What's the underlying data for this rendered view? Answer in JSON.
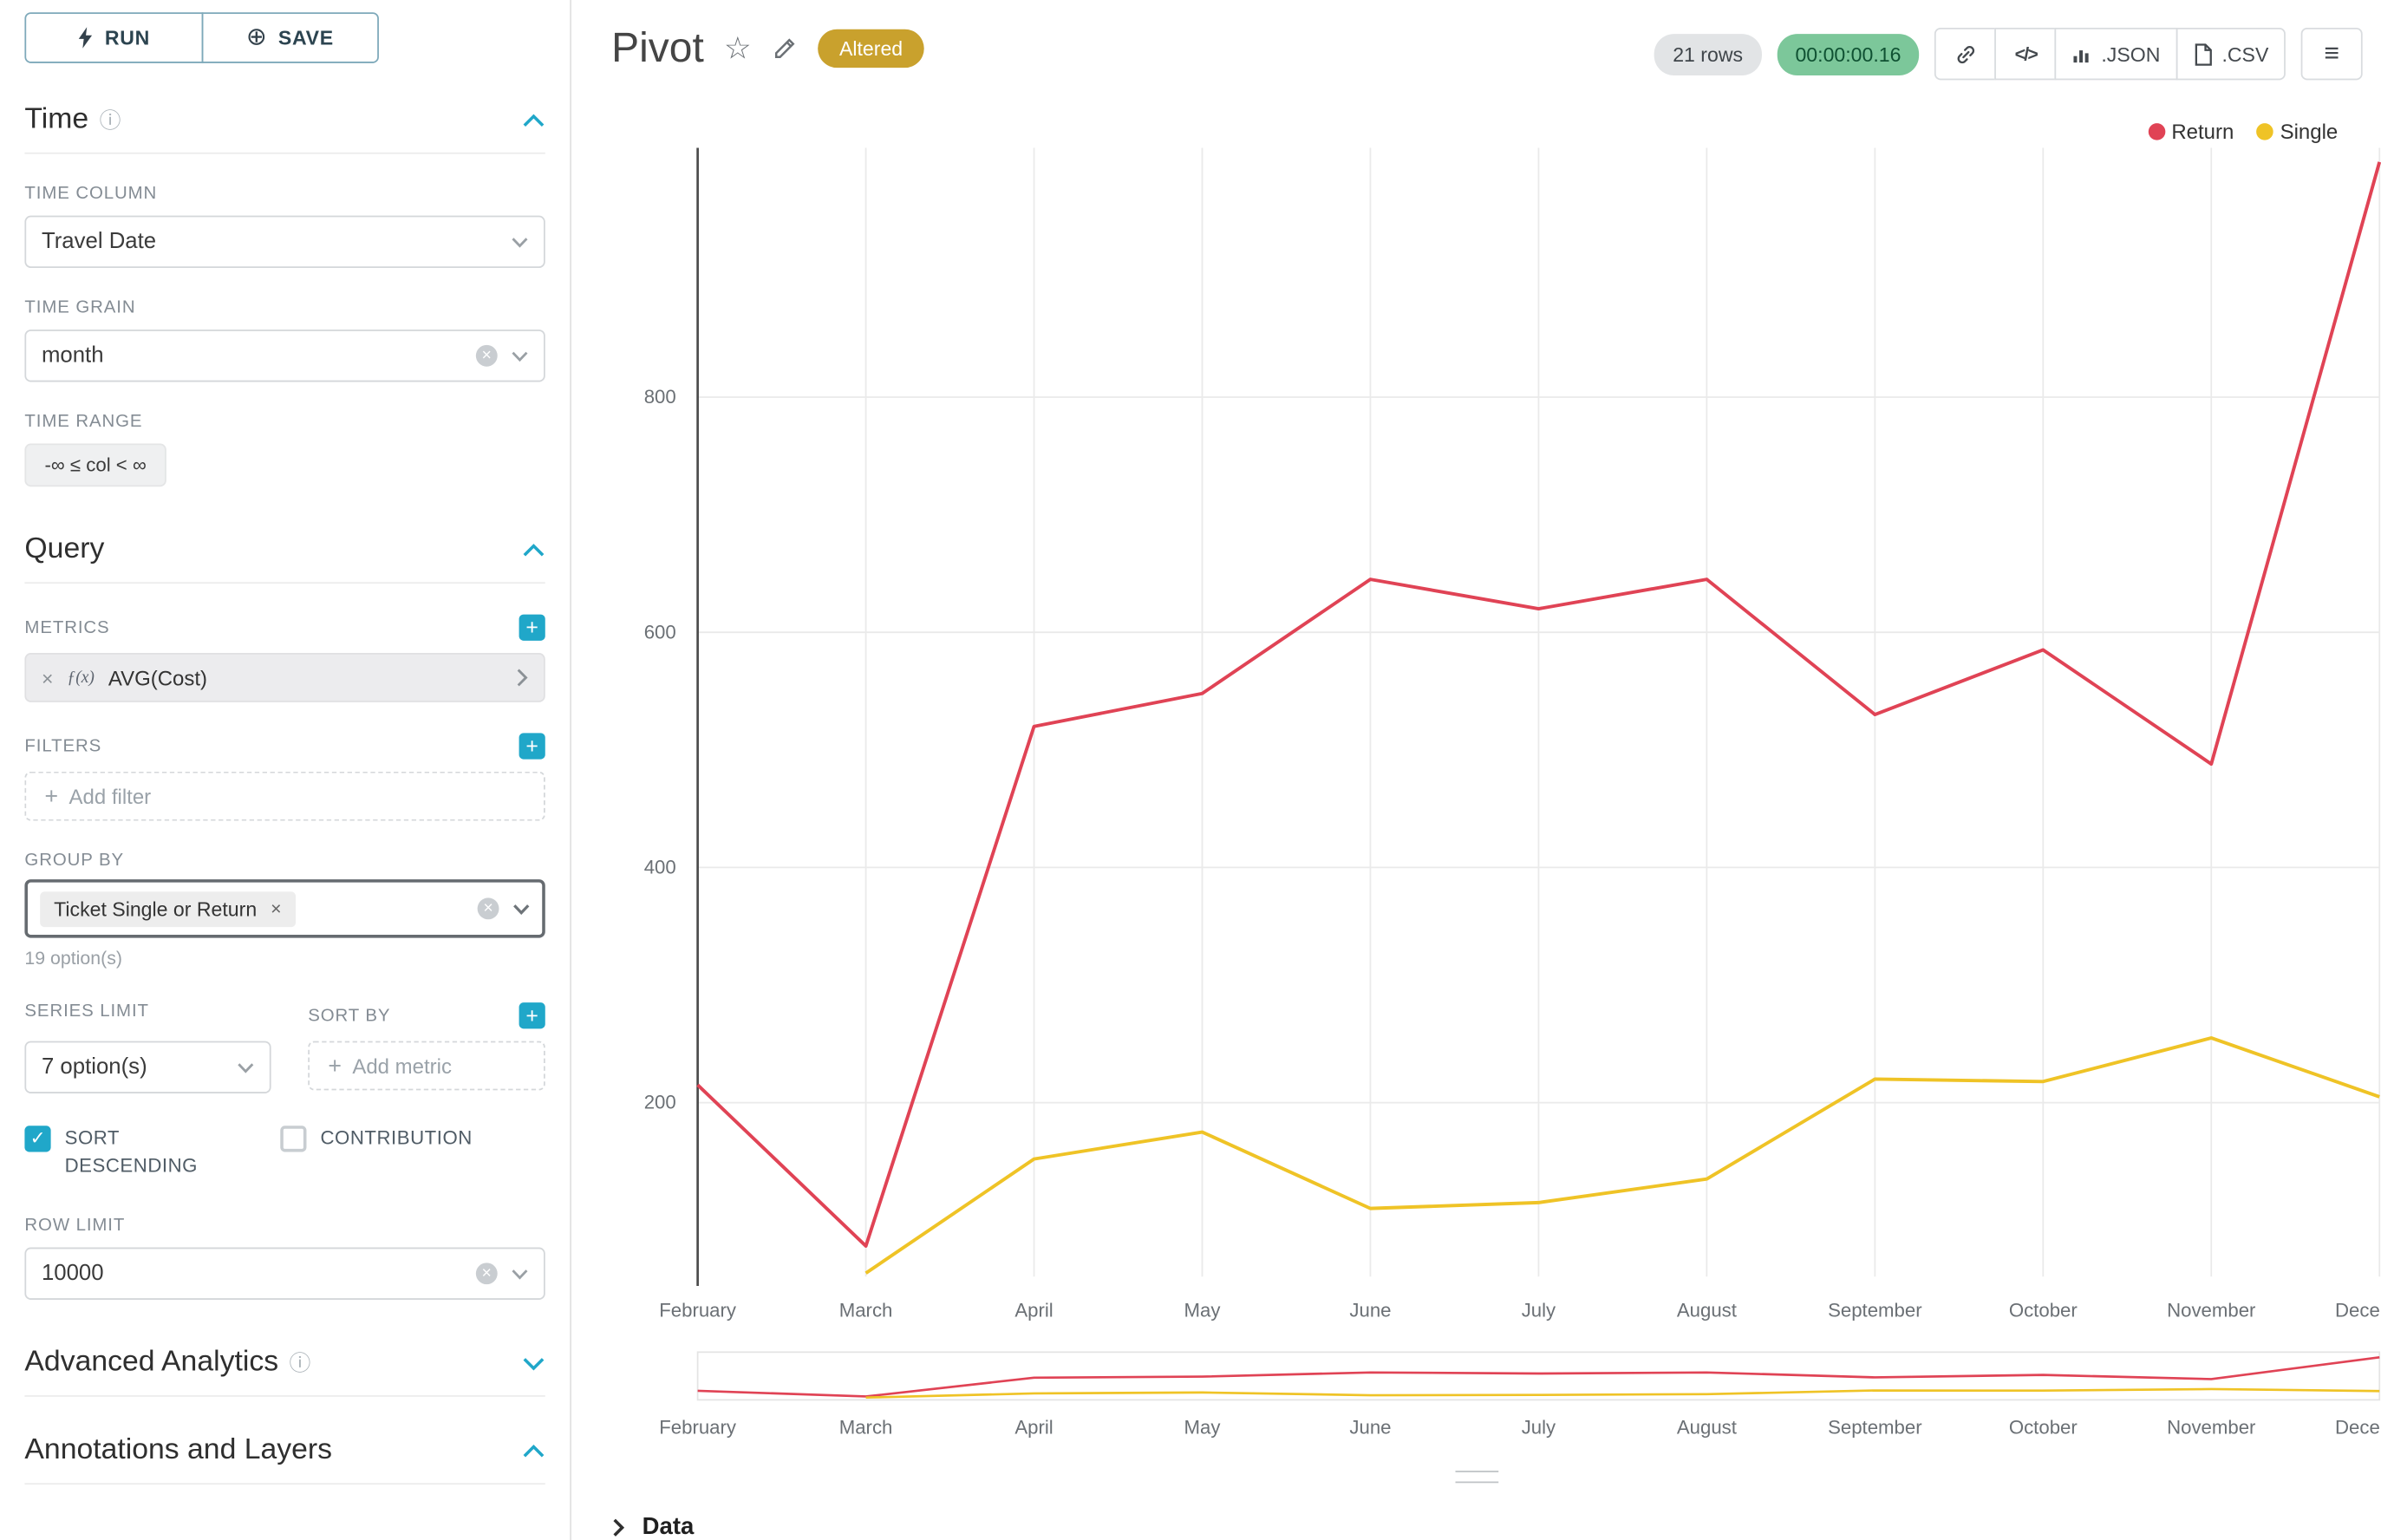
{
  "icons": {
    "save": "⊕",
    "info": "ⓘ",
    "menu": "≡",
    "code": "</>",
    "check": "✓",
    "clear": "×",
    "plus": "+",
    "star": "☆"
  },
  "panel": {
    "run_label": "RUN",
    "save_label": "SAVE",
    "time_section": {
      "title": "Time",
      "time_column_label": "TIME COLUMN",
      "time_column_value": "Travel Date",
      "time_grain_label": "TIME GRAIN",
      "time_grain_value": "month",
      "time_range_label": "TIME RANGE",
      "time_range_value": "-∞ ≤ col < ∞"
    },
    "query_section": {
      "title": "Query",
      "metrics_label": "METRICS",
      "metric_prefix": "ƒ(x)",
      "metric_value": "AVG(Cost)",
      "filters_label": "FILTERS",
      "add_filter_label": "Add filter",
      "group_by_label": "GROUP BY",
      "group_by_tag": "Ticket Single or Return",
      "group_by_hint": "19 option(s)",
      "series_limit_label": "SERIES LIMIT",
      "series_limit_value": "7 option(s)",
      "sort_by_label": "SORT BY",
      "add_metric_label": "Add metric",
      "sort_descending_label": "SORT DESCENDING",
      "contribution_label": "CONTRIBUTION",
      "row_limit_label": "ROW LIMIT",
      "row_limit_value": "10000"
    },
    "advanced_section_title": "Advanced Analytics",
    "annotations_section_title": "Annotations and Layers"
  },
  "header": {
    "title": "Pivot",
    "altered_badge": "Altered",
    "rows_badge": "21 rows",
    "timer_badge": "00:00:00.16",
    "json_label": ".JSON",
    "csv_label": ".CSV"
  },
  "footer": {
    "data_label": "Data"
  },
  "chart_data": {
    "type": "line",
    "title": "Pivot",
    "categories": [
      "February",
      "March",
      "April",
      "May",
      "June",
      "July",
      "August",
      "September",
      "October",
      "November",
      "December"
    ],
    "series": [
      {
        "name": "Return",
        "color": "#e04355",
        "values": [
          215,
          78,
          520,
          548,
          645,
          620,
          645,
          530,
          585,
          488,
          1000
        ]
      },
      {
        "name": "Single",
        "color": "#efc326",
        "values": [
          null,
          55,
          152,
          175,
          110,
          115,
          135,
          220,
          218,
          255,
          205
        ]
      }
    ],
    "yticks": [
      200,
      400,
      600,
      800
    ],
    "ylim": [
      52,
      1012
    ],
    "xlabel": "",
    "ylabel": "",
    "grid": true,
    "legend_position": "top-right",
    "has_range_selector_minimap": true
  }
}
